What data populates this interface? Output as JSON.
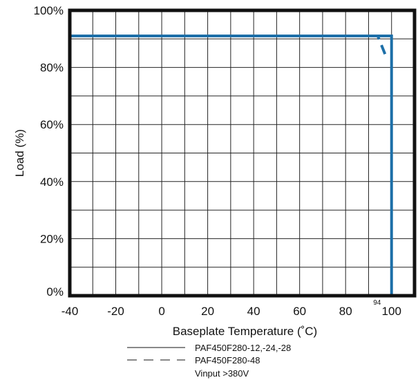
{
  "chart_data": {
    "type": "line",
    "title": "",
    "xlabel": "Baseplate Temperature (˚C)",
    "ylabel": "Load (%)",
    "xlim": [
      -40,
      110
    ],
    "ylim": [
      0,
      100
    ],
    "x_ticks": [
      -40,
      -20,
      0,
      20,
      40,
      60,
      80,
      100
    ],
    "x_tick_labels": [
      "-40",
      "-20",
      "0",
      "20",
      "40",
      "60",
      "80",
      "100"
    ],
    "y_ticks": [
      0,
      20,
      40,
      60,
      80,
      100
    ],
    "y_tick_labels": [
      "0%",
      "20%",
      "40%",
      "60%",
      "80%",
      "100%"
    ],
    "grid": true,
    "legend_position": "bottom",
    "annotations": [
      {
        "text": "94",
        "x": 94
      }
    ],
    "colors": {
      "series": "#1d6fa8",
      "grid": "#222222",
      "frame": "#111111"
    },
    "series": [
      {
        "name": "PAF450F280-12,-24,-28",
        "style": "solid",
        "x": [
          -40,
          100,
          100
        ],
        "y": [
          100,
          100,
          0
        ]
      },
      {
        "name": "PAF450F280-48",
        "note": "Vinput >380V",
        "style": "dashed",
        "x": [
          -40,
          94,
          98
        ],
        "y": [
          100,
          100,
          83
        ]
      }
    ]
  }
}
